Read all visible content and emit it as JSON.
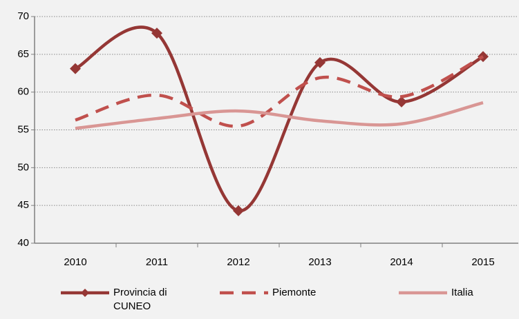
{
  "chart_data": {
    "type": "line",
    "categories": [
      "2010",
      "2011",
      "2012",
      "2013",
      "2014",
      "2015"
    ],
    "series": [
      {
        "name": "Provincia di CUNEO",
        "color": "#953735",
        "dash": "solid",
        "marker": "diamond",
        "values": [
          63.1,
          67.8,
          44.3,
          63.9,
          58.7,
          64.7
        ]
      },
      {
        "name": "Piemonte",
        "color": "#c0504d",
        "dash": "dashed",
        "marker": "none",
        "values": [
          56.3,
          59.6,
          55.5,
          61.9,
          59.4,
          64.7
        ]
      },
      {
        "name": "Italia",
        "color": "#d99694",
        "dash": "solid",
        "marker": "none",
        "values": [
          55.2,
          56.5,
          57.5,
          56.2,
          55.8,
          58.6
        ]
      }
    ],
    "ylim": [
      40,
      70
    ],
    "yticks": [
      40,
      45,
      50,
      55,
      60,
      65,
      70
    ],
    "grid": true,
    "smooth": true,
    "legend": "bottom"
  }
}
